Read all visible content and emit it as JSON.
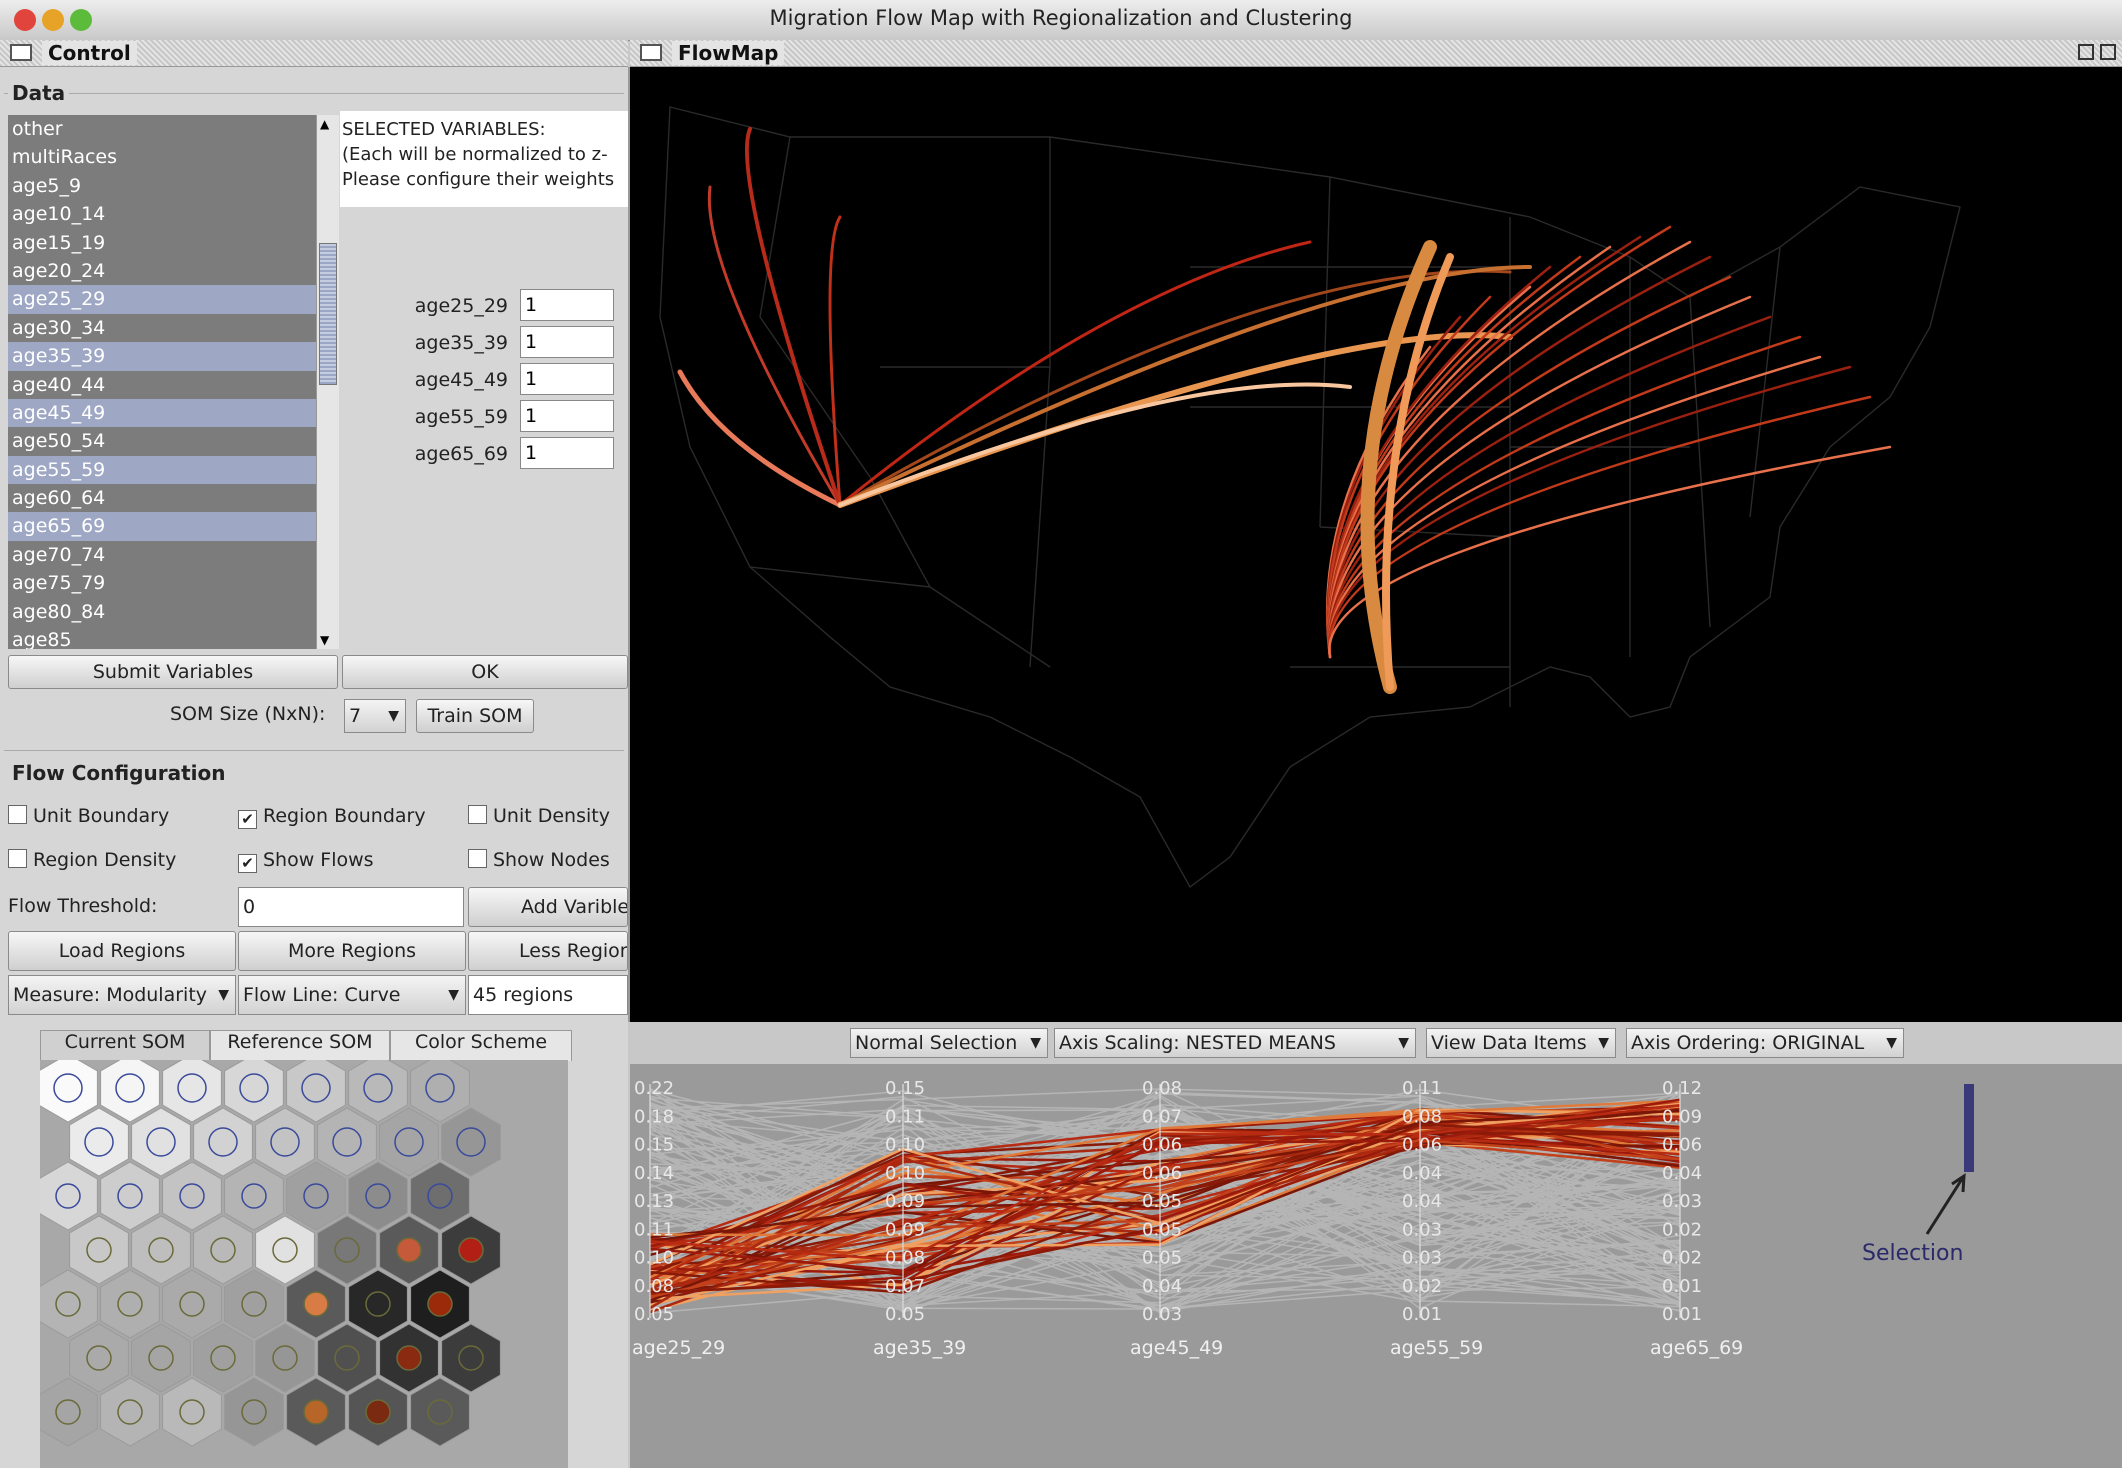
{
  "window": {
    "title": "Migration Flow Map with Regionalization and Clustering"
  },
  "control_frame": {
    "title": "Control"
  },
  "flowmap_frame": {
    "title": "FlowMap"
  },
  "data_section": {
    "label": "Data",
    "variables": [
      "other",
      "multiRaces",
      "age5_9",
      "age10_14",
      "age15_19",
      "age20_24",
      "age25_29",
      "age30_34",
      "age35_39",
      "age40_44",
      "age45_49",
      "age50_54",
      "age55_59",
      "age60_64",
      "age65_69",
      "age70_74",
      "age75_79",
      "age80_84",
      "age85"
    ],
    "selected": [
      "age25_29",
      "age35_39",
      "age45_49",
      "age55_59",
      "age65_69"
    ],
    "selected_header": [
      "SELECTED VARIABLES:",
      "(Each will be normalized to z-",
      "Please configure their weights"
    ],
    "weights": [
      {
        "name": "age25_29",
        "value": "1"
      },
      {
        "name": "age35_39",
        "value": "1"
      },
      {
        "name": "age45_49",
        "value": "1"
      },
      {
        "name": "age55_59",
        "value": "1"
      },
      {
        "name": "age65_69",
        "value": "1"
      }
    ],
    "submit_label": "Submit Variables",
    "ok_label": "OK",
    "som_size_label": "SOM Size (NxN):",
    "som_size_value": "7",
    "train_label": "Train SOM"
  },
  "flow_config": {
    "label": "Flow Configuration",
    "unit_boundary": {
      "label": "Unit Boundary",
      "checked": false
    },
    "region_boundary": {
      "label": "Region Boundary",
      "checked": true
    },
    "unit_density": {
      "label": "Unit Density",
      "checked": false
    },
    "region_density": {
      "label": "Region Density",
      "checked": false
    },
    "show_flows": {
      "label": "Show Flows",
      "checked": true
    },
    "show_nodes": {
      "label": "Show Nodes",
      "checked": false
    },
    "threshold_label": "Flow Threshold:",
    "threshold_value": "0",
    "add_variable_label": "Add Varible",
    "load_regions_label": "Load Regions",
    "more_regions_label": "More Regions",
    "less_regions_label": "Less Regions",
    "measure_value": "Measure: Modularity",
    "flow_line_value": "Flow Line: Curve",
    "regions_value": "45 regions"
  },
  "som_tabs": [
    "Current SOM",
    "Reference SOM",
    "Color Scheme"
  ],
  "pcp_toolbar": {
    "selection_mode": "Normal Selection",
    "axis_scaling": "Axis Scaling: NESTED MEANS",
    "view_items": "View Data Items",
    "axis_ordering": "Axis Ordering: ORIGINAL"
  },
  "pcp": {
    "axes": [
      {
        "name": "age25_29",
        "ticks": [
          "0.22",
          "0.18",
          "0.15",
          "0.14",
          "0.13",
          "0.11",
          "0.10",
          "0.08",
          "0.05"
        ]
      },
      {
        "name": "age35_39",
        "ticks": [
          "0.15",
          "0.11",
          "0.10",
          "0.10",
          "0.09",
          "0.09",
          "0.08",
          "0.07",
          "0.05"
        ]
      },
      {
        "name": "age45_49",
        "ticks": [
          "0.08",
          "0.07",
          "0.06",
          "0.06",
          "0.05",
          "0.05",
          "0.05",
          "0.04",
          "0.03"
        ]
      },
      {
        "name": "age55_59",
        "ticks": [
          "0.11",
          "0.08",
          "0.06",
          "0.04",
          "0.04",
          "0.03",
          "0.03",
          "0.02",
          "0.01"
        ]
      },
      {
        "name": "age65_69",
        "ticks": [
          "0.12",
          "0.09",
          "0.06",
          "0.04",
          "0.03",
          "0.02",
          "0.02",
          "0.01",
          "0.01"
        ]
      }
    ],
    "selection_label": "Selection"
  },
  "colors": {
    "flow_dark": "#8b1a0c",
    "flow_light": "#f0a060",
    "selection": "#3a3a7a"
  }
}
